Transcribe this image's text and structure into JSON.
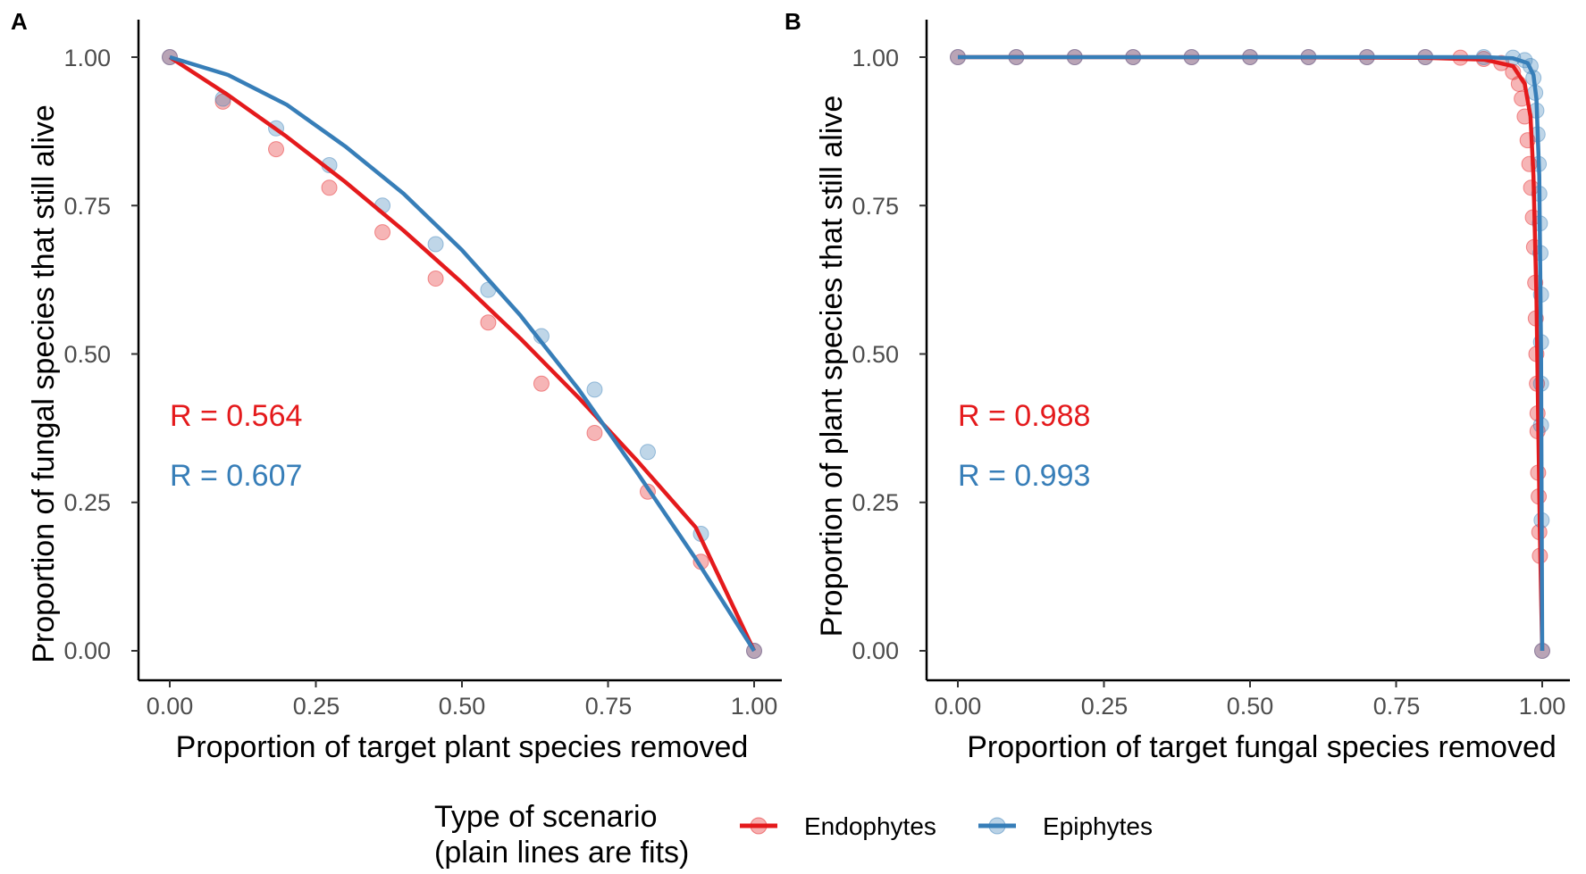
{
  "colors": {
    "endophytes": "#E41A1C",
    "epiphytes": "#377EB8",
    "axis": "#000000",
    "tick_text": "#4d4d4d"
  },
  "legend": {
    "title_line1": "Type of scenario",
    "title_line2": "(plain lines are fits)",
    "items": [
      {
        "label": "Endophytes",
        "color": "#E41A1C"
      },
      {
        "label": "Epiphytes",
        "color": "#377EB8"
      }
    ]
  },
  "chart_data": [
    {
      "panel": "A",
      "type": "scatter",
      "xlabel": "Proportion of target plant species removed",
      "ylabel": "Proportion of fungal species that still alive",
      "xlim": [
        0,
        1
      ],
      "ylim": [
        0,
        1
      ],
      "xticks": [
        "0.00",
        "0.25",
        "0.50",
        "0.75",
        "1.00"
      ],
      "yticks": [
        "0.00",
        "0.25",
        "0.50",
        "0.75",
        "1.00"
      ],
      "annotations": [
        {
          "text": "R = 0.564",
          "series": "Endophytes"
        },
        {
          "text": "R = 0.607",
          "series": "Epiphytes"
        }
      ],
      "series": [
        {
          "name": "Endophytes",
          "points": [
            [
              0,
              1.0
            ],
            [
              0.091,
              0.925
            ],
            [
              0.182,
              0.845
            ],
            [
              0.273,
              0.78
            ],
            [
              0.364,
              0.705
            ],
            [
              0.455,
              0.627
            ],
            [
              0.545,
              0.553
            ],
            [
              0.636,
              0.45
            ],
            [
              0.727,
              0.367
            ],
            [
              0.818,
              0.268
            ],
            [
              0.909,
              0.15
            ],
            [
              1.0,
              0.0
            ]
          ],
          "fit": [
            [
              0,
              1.0
            ],
            [
              0.1,
              0.936
            ],
            [
              0.2,
              0.866
            ],
            [
              0.3,
              0.79
            ],
            [
              0.4,
              0.708
            ],
            [
              0.5,
              0.62
            ],
            [
              0.6,
              0.526
            ],
            [
              0.7,
              0.426
            ],
            [
              0.8,
              0.32
            ],
            [
              0.9,
              0.208
            ],
            [
              1.0,
              0.0
            ]
          ]
        },
        {
          "name": "Epiphytes",
          "points": [
            [
              0,
              1.0
            ],
            [
              0.091,
              0.93
            ],
            [
              0.182,
              0.88
            ],
            [
              0.273,
              0.818
            ],
            [
              0.364,
              0.75
            ],
            [
              0.455,
              0.685
            ],
            [
              0.545,
              0.608
            ],
            [
              0.636,
              0.53
            ],
            [
              0.727,
              0.44
            ],
            [
              0.818,
              0.335
            ],
            [
              0.909,
              0.197
            ],
            [
              1.0,
              0.0
            ]
          ],
          "fit": [
            [
              0,
              1.0
            ],
            [
              0.1,
              0.97
            ],
            [
              0.2,
              0.92
            ],
            [
              0.3,
              0.85
            ],
            [
              0.4,
              0.77
            ],
            [
              0.5,
              0.675
            ],
            [
              0.6,
              0.565
            ],
            [
              0.7,
              0.44
            ],
            [
              0.8,
              0.3
            ],
            [
              0.9,
              0.155
            ],
            [
              1.0,
              0.0
            ]
          ]
        }
      ]
    },
    {
      "panel": "B",
      "type": "scatter",
      "xlabel": "Proportion of target fungal species removed",
      "ylabel": "Proportion of plant species that still alive",
      "xlim": [
        0,
        1
      ],
      "ylim": [
        0,
        1
      ],
      "xticks": [
        "0.00",
        "0.25",
        "0.50",
        "0.75",
        "1.00"
      ],
      "yticks": [
        "0.00",
        "0.25",
        "0.50",
        "0.75",
        "1.00"
      ],
      "annotations": [
        {
          "text": "R = 0.988",
          "series": "Endophytes"
        },
        {
          "text": "R = 0.993",
          "series": "Epiphytes"
        }
      ],
      "series": [
        {
          "name": "Endophytes",
          "points": [
            [
              0.0,
              1.0
            ],
            [
              0.1,
              1.0
            ],
            [
              0.2,
              1.0
            ],
            [
              0.3,
              1.0
            ],
            [
              0.4,
              1.0
            ],
            [
              0.5,
              1.0
            ],
            [
              0.6,
              1.0
            ],
            [
              0.7,
              1.0
            ],
            [
              0.8,
              1.0
            ],
            [
              0.86,
              0.999
            ],
            [
              0.9,
              0.997
            ],
            [
              0.93,
              0.99
            ],
            [
              0.95,
              0.975
            ],
            [
              0.96,
              0.955
            ],
            [
              0.965,
              0.93
            ],
            [
              0.97,
              0.9
            ],
            [
              0.975,
              0.86
            ],
            [
              0.978,
              0.82
            ],
            [
              0.981,
              0.78
            ],
            [
              0.984,
              0.73
            ],
            [
              0.986,
              0.68
            ],
            [
              0.988,
              0.62
            ],
            [
              0.989,
              0.56
            ],
            [
              0.99,
              0.5
            ],
            [
              0.991,
              0.45
            ],
            [
              0.992,
              0.4
            ],
            [
              0.992,
              0.37
            ],
            [
              0.993,
              0.3
            ],
            [
              0.994,
              0.26
            ],
            [
              0.995,
              0.2
            ],
            [
              0.996,
              0.16
            ],
            [
              1.0,
              0.0
            ]
          ],
          "fit": [
            [
              0,
              1.0
            ],
            [
              0.5,
              1.0
            ],
            [
              0.8,
              0.999
            ],
            [
              0.9,
              0.996
            ],
            [
              0.95,
              0.985
            ],
            [
              0.97,
              0.955
            ],
            [
              0.98,
              0.9
            ],
            [
              0.985,
              0.8
            ],
            [
              0.99,
              0.6
            ],
            [
              0.993,
              0.4
            ],
            [
              0.996,
              0.2
            ],
            [
              1.0,
              0.0
            ]
          ]
        },
        {
          "name": "Epiphytes",
          "points": [
            [
              0.0,
              1.0
            ],
            [
              0.1,
              1.0
            ],
            [
              0.2,
              1.0
            ],
            [
              0.3,
              1.0
            ],
            [
              0.4,
              1.0
            ],
            [
              0.5,
              1.0
            ],
            [
              0.6,
              1.0
            ],
            [
              0.7,
              1.0
            ],
            [
              0.8,
              1.0
            ],
            [
              0.9,
              1.0
            ],
            [
              0.95,
              0.999
            ],
            [
              0.97,
              0.995
            ],
            [
              0.98,
              0.985
            ],
            [
              0.985,
              0.965
            ],
            [
              0.988,
              0.94
            ],
            [
              0.99,
              0.91
            ],
            [
              0.992,
              0.87
            ],
            [
              0.994,
              0.82
            ],
            [
              0.995,
              0.77
            ],
            [
              0.996,
              0.72
            ],
            [
              0.997,
              0.67
            ],
            [
              0.998,
              0.6
            ],
            [
              0.998,
              0.52
            ],
            [
              0.998,
              0.45
            ],
            [
              0.998,
              0.38
            ],
            [
              0.999,
              0.22
            ],
            [
              1.0,
              0.0
            ]
          ],
          "fit": [
            [
              0,
              1.0
            ],
            [
              0.5,
              1.0
            ],
            [
              0.9,
              1.0
            ],
            [
              0.95,
              0.998
            ],
            [
              0.975,
              0.99
            ],
            [
              0.985,
              0.97
            ],
            [
              0.99,
              0.93
            ],
            [
              0.995,
              0.8
            ],
            [
              0.998,
              0.5
            ],
            [
              0.999,
              0.25
            ],
            [
              1.0,
              0.0
            ]
          ]
        }
      ]
    }
  ]
}
